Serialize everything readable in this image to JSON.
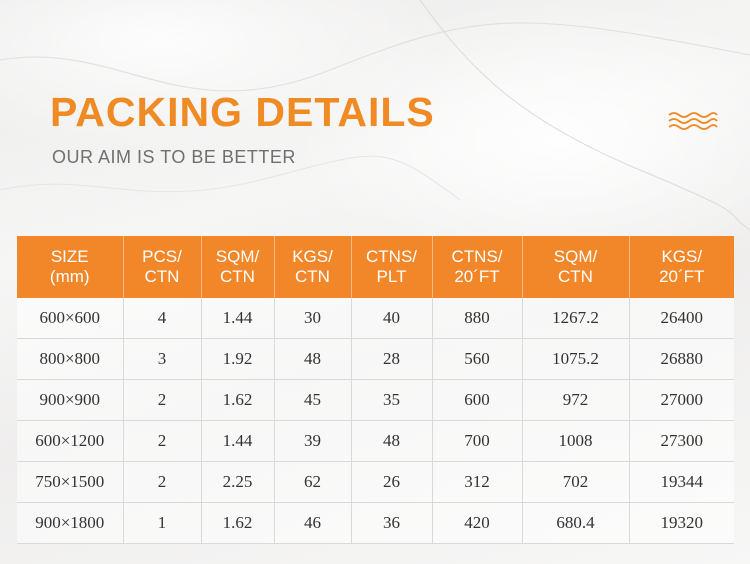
{
  "header": {
    "title": "PACKING DETAILS",
    "subtitle": "OUR AIM IS TO BE BETTER"
  },
  "colors": {
    "accent": "#f08a24",
    "header_bg": "#f2872a",
    "subtitle": "#707070"
  },
  "table": {
    "columns": [
      [
        "SIZE",
        "(mm)"
      ],
      [
        "PCS/",
        "CTN"
      ],
      [
        "SQM/",
        "CTN"
      ],
      [
        "KGS/",
        "CTN"
      ],
      [
        "CTNS/",
        "PLT"
      ],
      [
        "CTNS/",
        "20´FT"
      ],
      [
        "SQM/",
        "CTN"
      ],
      [
        "KGS/",
        "20´FT"
      ]
    ],
    "rows": [
      [
        "600×600",
        "4",
        "1.44",
        "30",
        "40",
        "880",
        "1267.2",
        "26400"
      ],
      [
        "800×800",
        "3",
        "1.92",
        "48",
        "28",
        "560",
        "1075.2",
        "26880"
      ],
      [
        "900×900",
        "2",
        "1.62",
        "45",
        "35",
        "600",
        "972",
        "27000"
      ],
      [
        "600×1200",
        "2",
        "1.44",
        "39",
        "48",
        "700",
        "1008",
        "27300"
      ],
      [
        "750×1500",
        "2",
        "2.25",
        "62",
        "26",
        "312",
        "702",
        "19344"
      ],
      [
        "900×1800",
        "1",
        "1.62",
        "46",
        "36",
        "420",
        "680.4",
        "19320"
      ]
    ]
  }
}
